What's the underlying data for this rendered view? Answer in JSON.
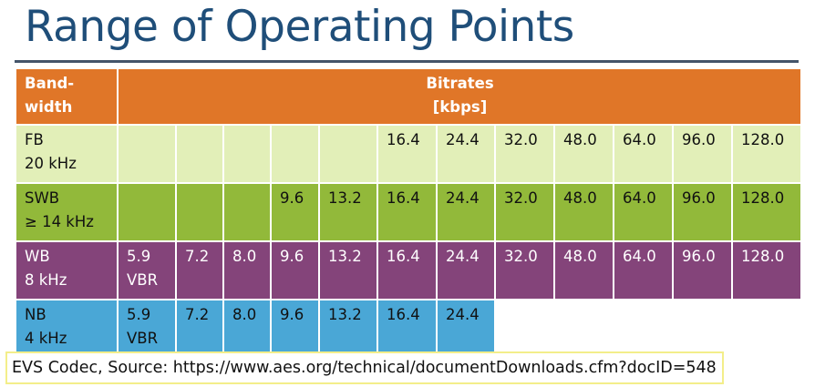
{
  "title": "Range of Operating Points",
  "table": {
    "header": {
      "bandwidth": [
        "Band-",
        "width"
      ],
      "bitrates": [
        "Bitrates",
        "[kbps]"
      ]
    },
    "rows": [
      {
        "key": "fb",
        "band": "FB",
        "freq": "20 kHz",
        "cells": [
          "",
          "",
          "",
          "",
          "",
          "16.4",
          "24.4",
          "32.0",
          "48.0",
          "64.0",
          "96.0",
          "128.0"
        ]
      },
      {
        "key": "swb",
        "band": "SWB",
        "freq": "≥ 14 kHz",
        "cells": [
          "",
          "",
          "",
          "9.6",
          "13.2",
          "16.4",
          "24.4",
          "32.0",
          "48.0",
          "64.0",
          "96.0",
          "128.0"
        ]
      },
      {
        "key": "wb",
        "band": "WB",
        "freq": "8 kHz",
        "cells": [
          "5.9\nVBR",
          "7.2",
          "8.0",
          "9.6",
          "13.2",
          "16.4",
          "24.4",
          "32.0",
          "48.0",
          "64.0",
          "96.0",
          "128.0"
        ]
      },
      {
        "key": "nb",
        "band": "NB",
        "freq": "4 kHz",
        "cells": [
          "5.9\nVBR",
          "7.2",
          "8.0",
          "9.6",
          "13.2",
          "16.4",
          "24.4"
        ]
      }
    ],
    "colors": {
      "header": "#e07628",
      "fb": "#e2efb8",
      "swb": "#92b93a",
      "wb": "#84447a",
      "nb": "#4aa7d6"
    }
  },
  "caption": "EVS Codec, Source: https://www.aes.org/technical/documentDownloads.cfm?docID=548"
}
